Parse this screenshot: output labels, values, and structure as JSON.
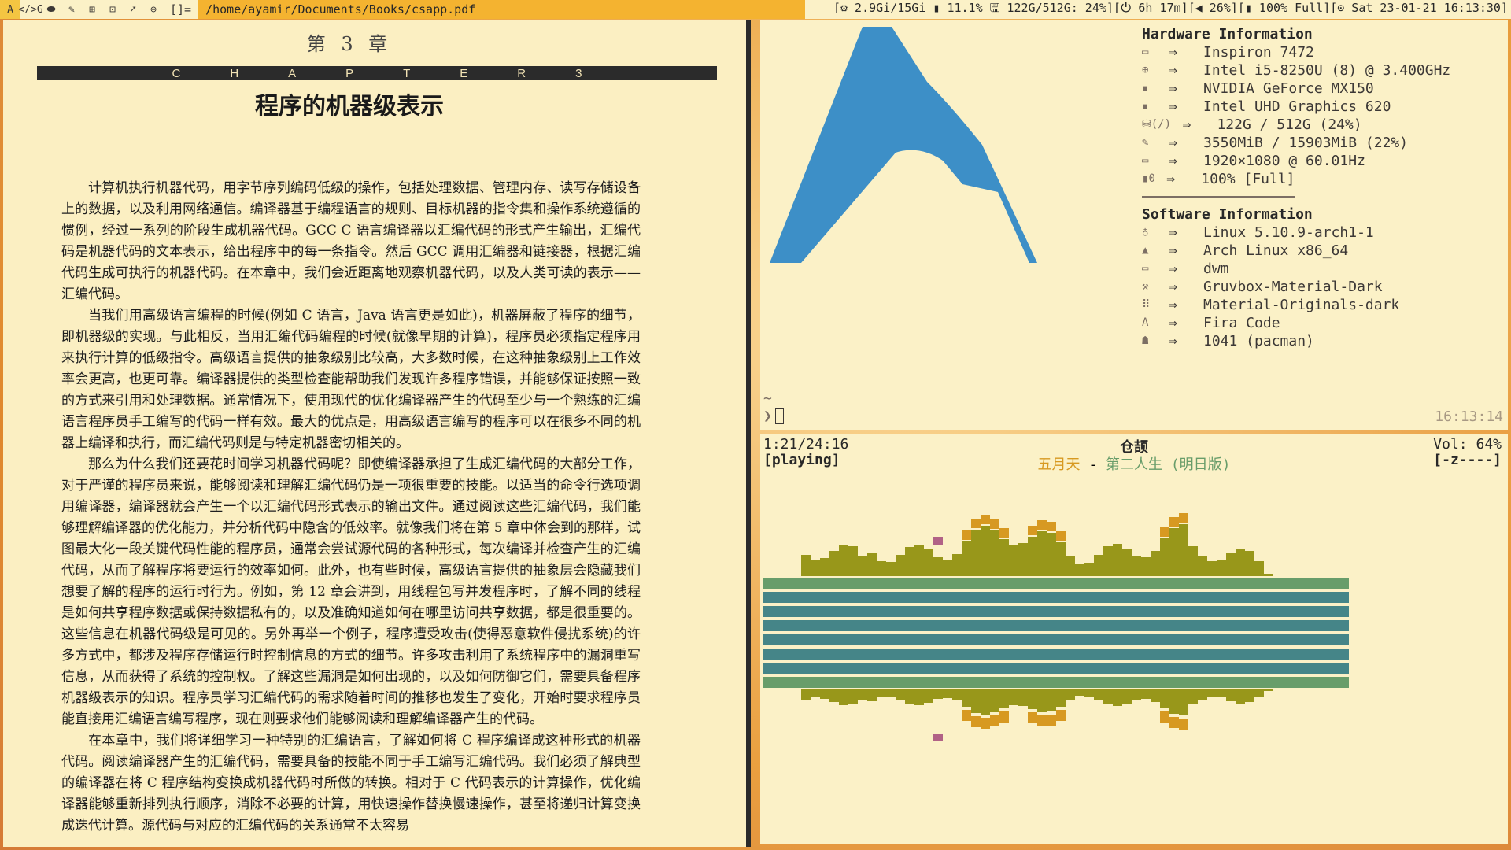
{
  "topbar": {
    "tags": [
      "A",
      "</>G",
      "⬬",
      "✎",
      "⊞",
      "⊡",
      "➚",
      "⊜"
    ],
    "layout": "[]=",
    "window_title": "/home/ayamir/Documents/Books/csapp.pdf",
    "status": "[⚙ 2.9Gi/15Gi ▮ 11.1% 🖫 122G/512G: 24%][⏻ 6h 17m][◀ 26%][▮ 100% Full][⊙ Sat 23-01-21 16:13:30]"
  },
  "pdf": {
    "chapter_label": "第 3 章",
    "chapter_letters": [
      "C",
      "H",
      "A",
      "P",
      "T",
      "E",
      "R",
      "3"
    ],
    "title": "程序的机器级表示",
    "paragraphs": [
      "计算机执行机器代码，用字节序列编码低级的操作，包括处理数据、管理内存、读写存储设备上的数据，以及利用网络通信。编译器基于编程语言的规则、目标机器的指令集和操作系统遵循的惯例，经过一系列的阶段生成机器代码。GCC C 语言编译器以汇编代码的形式产生输出，汇编代码是机器代码的文本表示，给出程序中的每一条指令。然后 GCC 调用汇编器和链接器，根据汇编代码生成可执行的机器代码。在本章中，我们会近距离地观察机器代码，以及人类可读的表示——汇编代码。",
      "当我们用高级语言编程的时候(例如 C 语言，Java 语言更是如此)，机器屏蔽了程序的细节，即机器级的实现。与此相反，当用汇编代码编程的时候(就像早期的计算)，程序员必须指定程序用来执行计算的低级指令。高级语言提供的抽象级别比较高，大多数时候，在这种抽象级别上工作效率会更高，也更可靠。编译器提供的类型检查能帮助我们发现许多程序错误，并能够保证按照一致的方式来引用和处理数据。通常情况下，使用现代的优化编译器产生的代码至少与一个熟练的汇编语言程序员手工编写的代码一样有效。最大的优点是，用高级语言编写的程序可以在很多不同的机器上编译和执行，而汇编代码则是与特定机器密切相关的。",
      "那么为什么我们还要花时间学习机器代码呢？即使编译器承担了生成汇编代码的大部分工作，对于严谨的程序员来说，能够阅读和理解汇编代码仍是一项很重要的技能。以适当的命令行选项调用编译器，编译器就会产生一个以汇编代码形式表示的输出文件。通过阅读这些汇编代码，我们能够理解编译器的优化能力，并分析代码中隐含的低效率。就像我们将在第 5 章中体会到的那样，试图最大化一段关键代码性能的程序员，通常会尝试源代码的各种形式，每次编译并检查产生的汇编代码，从而了解程序将要运行的效率如何。此外，也有些时候，高级语言提供的抽象层会隐藏我们想要了解的程序的运行时行为。例如，第 12 章会讲到，用线程包写并发程序时，了解不同的线程是如何共享程序数据或保持数据私有的，以及准确知道如何在哪里访问共享数据，都是很重要的。这些信息在机器代码级是可见的。另外再举一个例子，程序遭受攻击(使得恶意软件侵扰系统)的许多方式中，都涉及程序存储运行时控制信息的方式的细节。许多攻击利用了系统程序中的漏洞重写信息，从而获得了系统的控制权。了解这些漏洞是如何出现的，以及如何防御它们，需要具备程序机器级表示的知识。程序员学习汇编代码的需求随着时间的推移也发生了变化，开始时要求程序员能直接用汇编语言编写程序，现在则要求他们能够阅读和理解编译器产生的代码。",
      "在本章中，我们将详细学习一种特别的汇编语言，了解如何将 C 程序编译成这种形式的机器代码。阅读编译器产生的汇编代码，需要具备的技能不同于手工编写汇编代码。我们必须了解典型的编译器在将 C 程序结构变换成机器代码时所做的转换。相对于 C 代码表示的计算操作，优化编译器能够重新排列执行顺序，消除不必要的计算，用快速操作替换慢速操作，甚至将递归计算变换成迭代计算。源代码与对应的汇编代码的关系通常不太容易"
    ]
  },
  "terminal": {
    "hardware_header": "Hardware Information",
    "hardware": [
      {
        "icon": "laptop-icon",
        "value": "Inspiron 7472"
      },
      {
        "icon": "cpu-icon",
        "value": "Intel i5-8250U (8) @ 3.400GHz"
      },
      {
        "icon": "gpu-icon",
        "value": "NVIDIA GeForce MX150"
      },
      {
        "icon": "gpu-icon",
        "value": "Intel UHD Graphics 620"
      },
      {
        "icon": "disk-icon",
        "label": "(/)",
        "value": "122G / 512G (24%)"
      },
      {
        "icon": "memory-icon",
        "value": "3550MiB / 15903MiB (22%)"
      },
      {
        "icon": "monitor-icon",
        "value": "1920×1080 @ 60.01Hz"
      },
      {
        "icon": "battery-icon",
        "label": "0",
        "value": "100% [Full]"
      }
    ],
    "software_header": "Software Information",
    "software": [
      {
        "icon": "linux-icon",
        "value": "Linux 5.10.9-arch1-1"
      },
      {
        "icon": "arch-icon",
        "value": "Arch Linux x86_64"
      },
      {
        "icon": "window-icon",
        "value": "dwm"
      },
      {
        "icon": "brush-icon",
        "value": "Gruvbox-Material-Dark"
      },
      {
        "icon": "icons-icon",
        "value": "Material-Originals-dark"
      },
      {
        "icon": "font-icon",
        "value": "Fira Code"
      },
      {
        "icon": "package-icon",
        "value": "1041 (pacman)"
      }
    ],
    "arrow": "⇒",
    "prompt_line1": "~",
    "prompt_symbol": "❯",
    "clock": "16:13:14",
    "logo_color": "#3d8fc7"
  },
  "music": {
    "time": "1:21/24:16",
    "state": "[playing]",
    "title": "仓颉",
    "volume": "Vol: 64%",
    "flags": "[-z----]",
    "artist": "五月天",
    "separator": " - ",
    "album": "第二人生 (明日版)",
    "colors": {
      "teal": "#458588",
      "green": "#689d6a",
      "olive": "#98971a",
      "orange": "#d79921",
      "pink": "#b16286"
    }
  }
}
